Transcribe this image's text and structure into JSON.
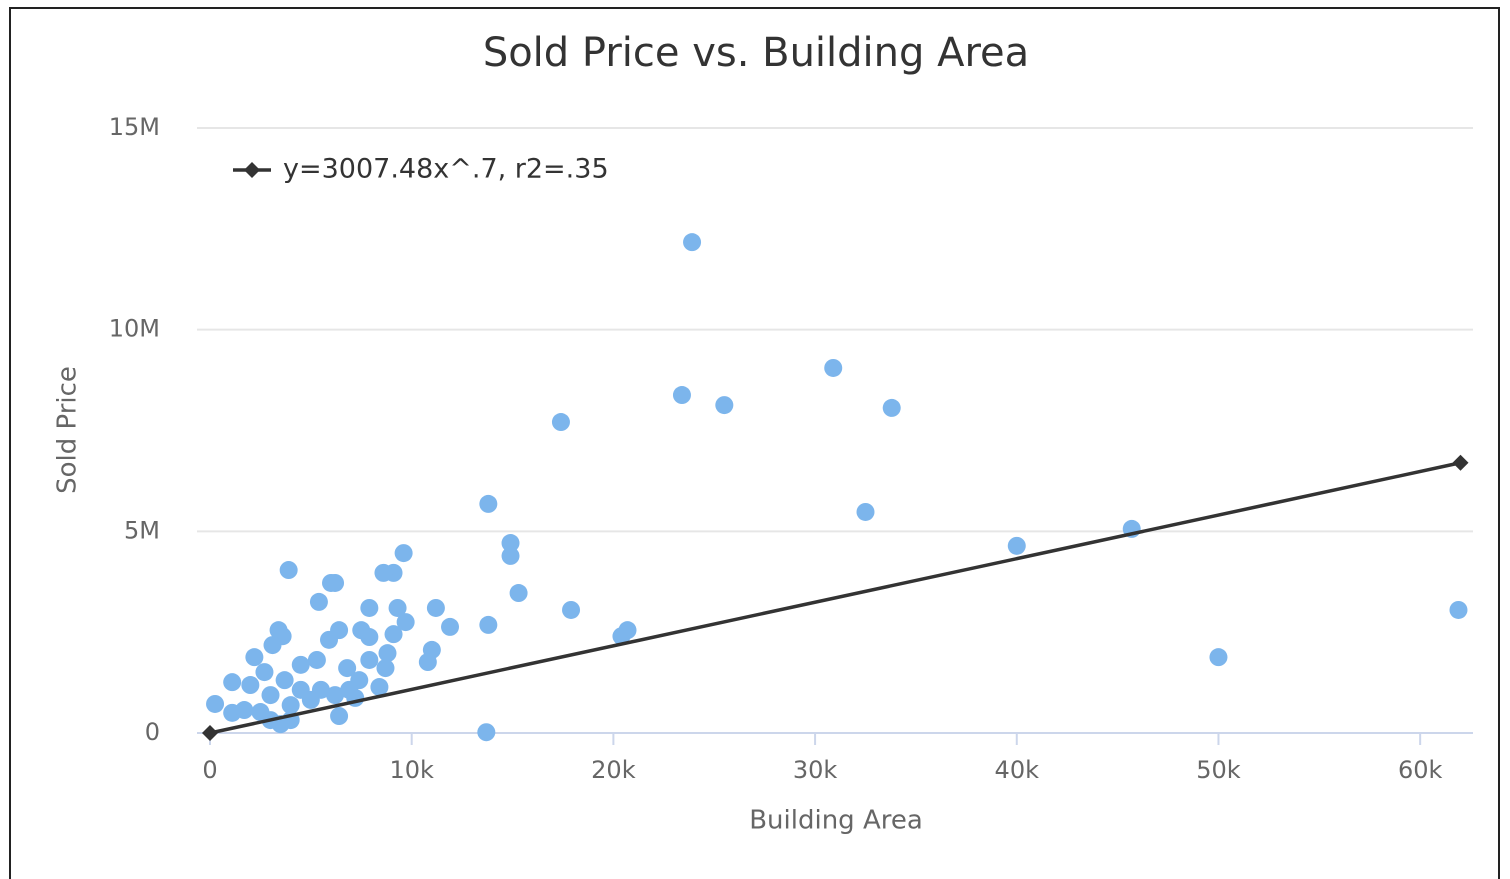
{
  "chart_data": {
    "type": "scatter",
    "title": "Sold Price vs. Building Area",
    "x_label": "Building Area",
    "y_label": "Sold Price",
    "xlim": [
      0,
      62620
    ],
    "ylim": [
      0,
      15000000
    ],
    "xticks": [
      0,
      {
        "value": 10000,
        "label": "10k"
      },
      {
        "value": 20000,
        "label": "20k"
      },
      {
        "value": 30000,
        "label": "30k"
      },
      {
        "value": 40000,
        "label": "40k"
      },
      {
        "value": 50000,
        "label": "50k"
      },
      {
        "value": 60000,
        "label": "60k"
      }
    ],
    "yticks": [
      0,
      {
        "value": 5000000,
        "label": "5M"
      },
      {
        "value": 10000000,
        "label": "10M"
      },
      {
        "value": 15000000,
        "label": "15M"
      }
    ],
    "grid": true,
    "series": [
      {
        "color": "#7cb5ec",
        "x": [
          23900,
          23400,
          25500,
          30900,
          33800,
          17400,
          13800,
          32500,
          45700,
          40000,
          14900,
          14900,
          15300,
          17900,
          20700,
          20400,
          61900,
          50000,
          13700,
          13800,
          11900,
          11200,
          11000,
          10800,
          9600,
          9100,
          8600,
          9300,
          9700,
          9100,
          8800,
          8700,
          8400,
          7900,
          7900,
          7500,
          7900,
          7200,
          6800,
          6400,
          6200,
          6000,
          5900,
          5400,
          3900,
          3600,
          3400,
          3100,
          2200,
          2700,
          1100,
          250,
          1100,
          2000,
          4500,
          5300,
          6400,
          4000,
          3500,
          3000,
          2500,
          4000,
          4500,
          5500,
          6200,
          5000,
          3700,
          3000,
          1700,
          7400,
          6900
        ],
        "values": [
          12170000,
          8380000,
          8130000,
          9050000,
          8060000,
          7710000,
          5680000,
          5480000,
          5060000,
          4640000,
          4710000,
          4390000,
          3470000,
          3050000,
          2550000,
          2400000,
          3050000,
          1880000,
          20000,
          2680000,
          2630000,
          3100000,
          2060000,
          1760000,
          4460000,
          3970000,
          3970000,
          3100000,
          2750000,
          2450000,
          1980000,
          1610000,
          1140000,
          3100000,
          2380000,
          2550000,
          1810000,
          870000,
          1610000,
          2550000,
          3720000,
          3720000,
          2310000,
          3250000,
          4040000,
          2400000,
          2550000,
          2180000,
          1880000,
          1510000,
          1260000,
          720000,
          500000,
          1190000,
          1690000,
          1810000,
          420000,
          320000,
          220000,
          320000,
          520000,
          690000,
          1070000,
          1070000,
          940000,
          820000,
          1310000,
          940000,
          570000,
          1310000,
          1070000
        ]
      },
      {
        "name": "y=3007.48x^.7, r2=.35",
        "color": "#333333",
        "x": [
          0,
          62000
        ],
        "values": [
          0,
          6700000
        ]
      }
    ]
  }
}
